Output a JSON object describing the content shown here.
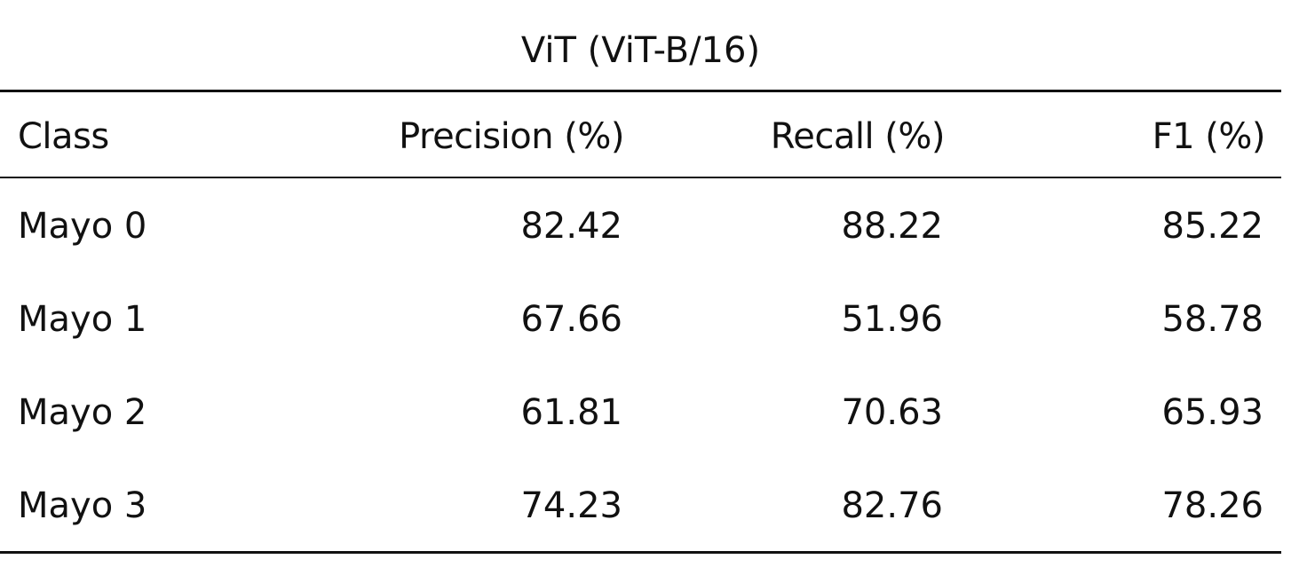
{
  "table": {
    "caption": "ViT (ViT-B/16)",
    "headers": [
      "Class",
      "Precision (%)",
      "Recall (%)",
      "F1 (%)"
    ],
    "rows": [
      [
        "Mayo 0",
        "82.42",
        "88.22",
        "85.22"
      ],
      [
        "Mayo 1",
        "67.66",
        "51.96",
        "58.78"
      ],
      [
        "Mayo 2",
        "61.81",
        "70.63",
        "65.93"
      ],
      [
        "Mayo 3",
        "74.23",
        "82.76",
        "78.26"
      ]
    ]
  }
}
